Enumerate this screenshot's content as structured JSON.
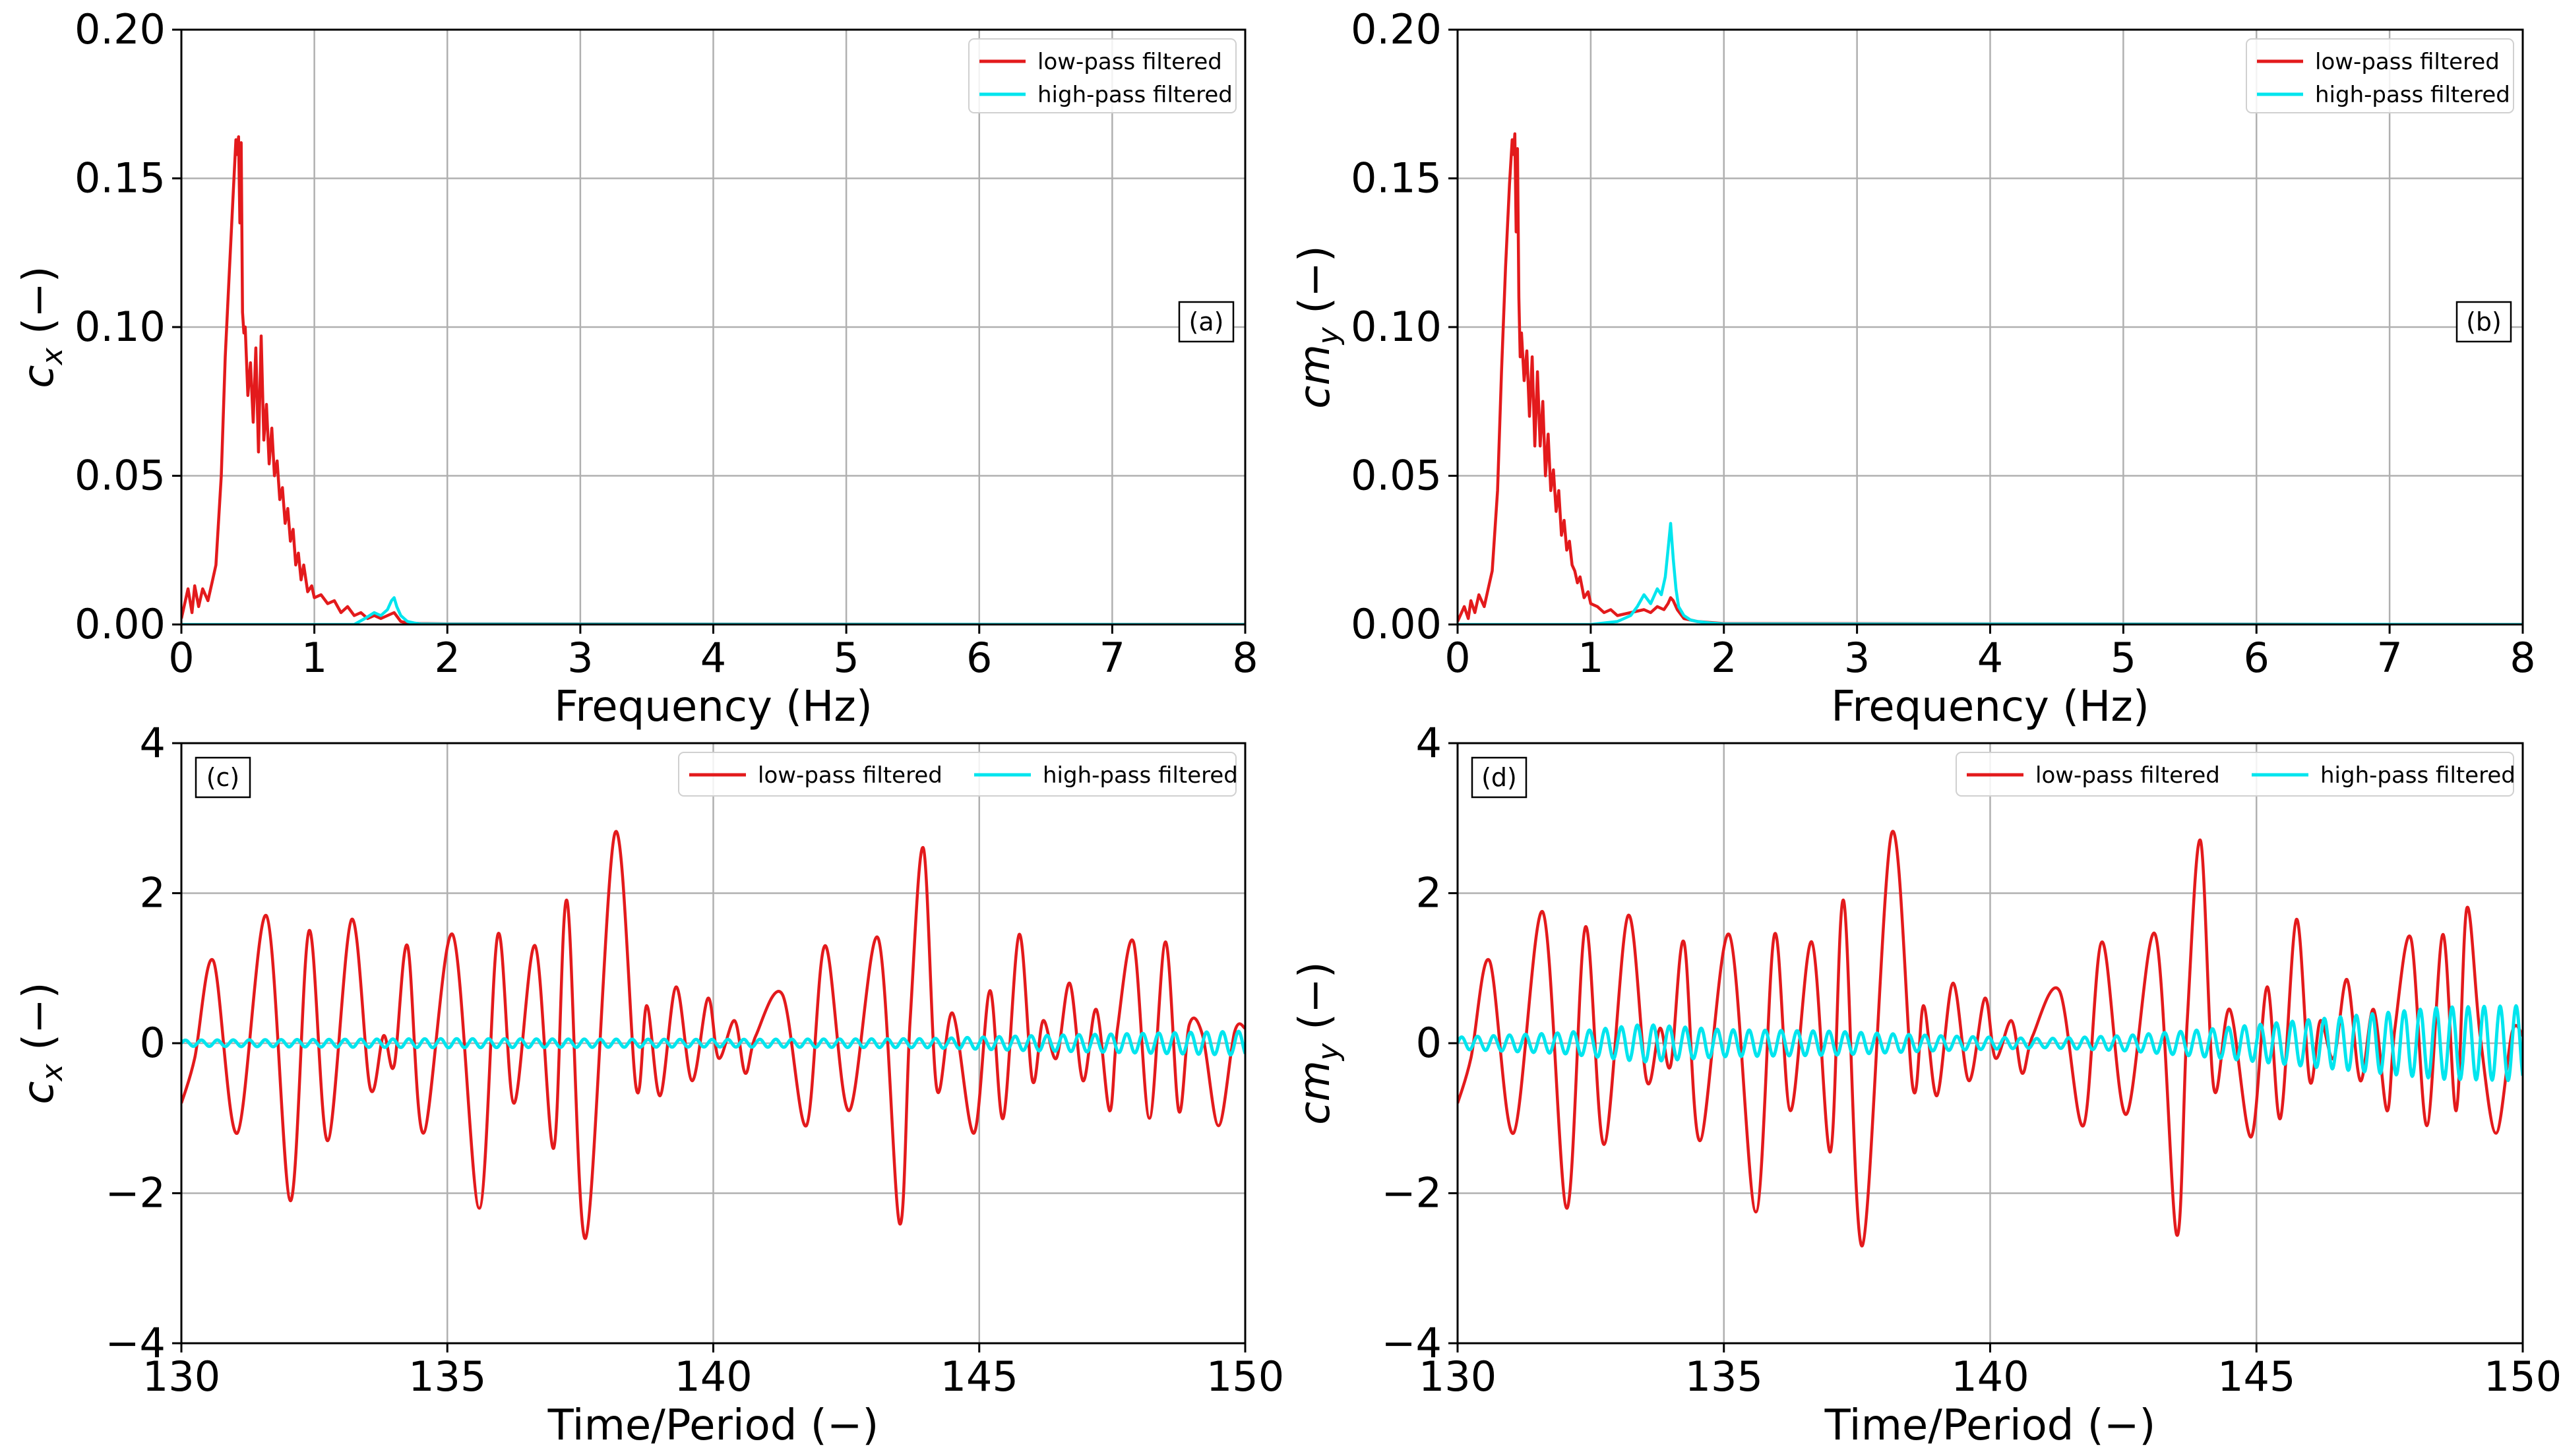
{
  "colors": {
    "low_pass": "#e31a1c",
    "high_pass": "#00e5ee",
    "grid": "#b0b0b0",
    "frame": "#000000"
  },
  "chart_data": [
    {
      "id": "a",
      "type": "line",
      "panel_label": "(a)",
      "xlabel": "Frequency (Hz)",
      "ylabel_main": "c",
      "ylabel_sub": "x",
      "ylabel_tail": " (−)",
      "xlim": [
        0,
        8
      ],
      "ylim": [
        0,
        0.2
      ],
      "xticks": [
        0,
        1,
        2,
        3,
        4,
        5,
        6,
        7,
        8
      ],
      "xtick_labels": [
        "0",
        "1",
        "2",
        "3",
        "4",
        "5",
        "6",
        "7",
        "8"
      ],
      "yticks": [
        0,
        0.05,
        0.1,
        0.15,
        0.2
      ],
      "ytick_labels": [
        "0.00",
        "0.05",
        "0.10",
        "0.15",
        "0.20"
      ],
      "grid": true,
      "legend": {
        "location": "upper-right",
        "layout": "vertical",
        "entries": [
          "low-pass filtered",
          "high-pass filtered"
        ]
      },
      "series": [
        {
          "name": "low-pass filtered",
          "color_key": "low_pass",
          "x": [
            0.0,
            0.05,
            0.08,
            0.1,
            0.13,
            0.16,
            0.2,
            0.23,
            0.26,
            0.3,
            0.33,
            0.36,
            0.39,
            0.41,
            0.42,
            0.43,
            0.44,
            0.45,
            0.46,
            0.47,
            0.48,
            0.5,
            0.52,
            0.54,
            0.56,
            0.58,
            0.6,
            0.62,
            0.64,
            0.66,
            0.68,
            0.7,
            0.72,
            0.74,
            0.76,
            0.78,
            0.8,
            0.82,
            0.84,
            0.86,
            0.88,
            0.9,
            0.92,
            0.95,
            0.98,
            1.0,
            1.05,
            1.1,
            1.15,
            1.2,
            1.25,
            1.3,
            1.35,
            1.4,
            1.45,
            1.5,
            1.55,
            1.6,
            1.65,
            1.7,
            1.8,
            2.0,
            8.0
          ],
          "y": [
            0.002,
            0.012,
            0.004,
            0.013,
            0.006,
            0.012,
            0.008,
            0.014,
            0.02,
            0.05,
            0.09,
            0.118,
            0.145,
            0.163,
            0.158,
            0.164,
            0.135,
            0.162,
            0.105,
            0.098,
            0.1,
            0.077,
            0.088,
            0.068,
            0.093,
            0.058,
            0.097,
            0.062,
            0.074,
            0.054,
            0.066,
            0.05,
            0.055,
            0.042,
            0.046,
            0.034,
            0.039,
            0.028,
            0.032,
            0.02,
            0.024,
            0.015,
            0.02,
            0.011,
            0.013,
            0.009,
            0.01,
            0.007,
            0.008,
            0.004,
            0.006,
            0.003,
            0.004,
            0.002,
            0.003,
            0.002,
            0.003,
            0.004,
            0.001,
            0.0005,
            0.0003,
            0.0002,
            0.0
          ]
        },
        {
          "name": "high-pass filtered",
          "color_key": "high_pass",
          "x": [
            0.0,
            1.3,
            1.38,
            1.45,
            1.5,
            1.55,
            1.58,
            1.6,
            1.62,
            1.65,
            1.7,
            1.75,
            1.8,
            2.0,
            8.0
          ],
          "y": [
            0.0,
            0.0,
            0.002,
            0.004,
            0.003,
            0.005,
            0.008,
            0.009,
            0.006,
            0.003,
            0.001,
            0.0005,
            0.0002,
            0.0001,
            0.0
          ]
        }
      ]
    },
    {
      "id": "b",
      "type": "line",
      "panel_label": "(b)",
      "xlabel": "Frequency (Hz)",
      "ylabel_main": "cm",
      "ylabel_sub": "y",
      "ylabel_tail": " (−)",
      "xlim": [
        0,
        8
      ],
      "ylim": [
        0,
        0.2
      ],
      "xticks": [
        0,
        1,
        2,
        3,
        4,
        5,
        6,
        7,
        8
      ],
      "xtick_labels": [
        "0",
        "1",
        "2",
        "3",
        "4",
        "5",
        "6",
        "7",
        "8"
      ],
      "yticks": [
        0,
        0.05,
        0.1,
        0.15,
        0.2
      ],
      "ytick_labels": [
        "0.00",
        "0.05",
        "0.10",
        "0.15",
        "0.20"
      ],
      "grid": true,
      "legend": {
        "location": "upper-right",
        "layout": "vertical",
        "entries": [
          "low-pass filtered",
          "high-pass filtered"
        ]
      },
      "series": [
        {
          "name": "low-pass filtered",
          "color_key": "low_pass",
          "x": [
            0.0,
            0.05,
            0.08,
            0.1,
            0.13,
            0.16,
            0.2,
            0.23,
            0.26,
            0.3,
            0.33,
            0.36,
            0.39,
            0.41,
            0.42,
            0.43,
            0.44,
            0.45,
            0.46,
            0.47,
            0.48,
            0.5,
            0.52,
            0.54,
            0.56,
            0.58,
            0.6,
            0.62,
            0.64,
            0.66,
            0.68,
            0.7,
            0.72,
            0.74,
            0.76,
            0.78,
            0.8,
            0.82,
            0.84,
            0.86,
            0.88,
            0.9,
            0.92,
            0.95,
            0.98,
            1.0,
            1.05,
            1.1,
            1.15,
            1.2,
            1.3,
            1.4,
            1.45,
            1.5,
            1.55,
            1.58,
            1.6,
            1.62,
            1.65,
            1.7,
            1.8,
            2.0,
            8.0
          ],
          "y": [
            0.001,
            0.006,
            0.002,
            0.008,
            0.004,
            0.01,
            0.006,
            0.012,
            0.018,
            0.045,
            0.085,
            0.12,
            0.148,
            0.163,
            0.158,
            0.165,
            0.132,
            0.16,
            0.11,
            0.09,
            0.098,
            0.082,
            0.092,
            0.07,
            0.09,
            0.06,
            0.085,
            0.06,
            0.075,
            0.05,
            0.064,
            0.045,
            0.052,
            0.038,
            0.045,
            0.03,
            0.035,
            0.025,
            0.028,
            0.02,
            0.018,
            0.014,
            0.016,
            0.009,
            0.011,
            0.007,
            0.006,
            0.004,
            0.005,
            0.003,
            0.004,
            0.005,
            0.004,
            0.006,
            0.005,
            0.007,
            0.009,
            0.008,
            0.005,
            0.002,
            0.001,
            0.0003,
            0.0
          ]
        },
        {
          "name": "high-pass filtered",
          "color_key": "high_pass",
          "x": [
            0.0,
            1.0,
            1.2,
            1.3,
            1.35,
            1.4,
            1.45,
            1.5,
            1.53,
            1.56,
            1.58,
            1.6,
            1.62,
            1.64,
            1.66,
            1.7,
            1.75,
            1.8,
            1.9,
            2.0,
            8.0
          ],
          "y": [
            0.0,
            0.0,
            0.001,
            0.003,
            0.006,
            0.01,
            0.007,
            0.012,
            0.01,
            0.016,
            0.025,
            0.034,
            0.022,
            0.012,
            0.006,
            0.003,
            0.0015,
            0.001,
            0.0005,
            0.0002,
            0.0
          ]
        }
      ]
    },
    {
      "id": "c",
      "type": "line",
      "panel_label": "(c)",
      "xlabel": "Time/Period (−)",
      "ylabel_main": "c",
      "ylabel_sub": "x",
      "ylabel_tail": " (−)",
      "xlim": [
        130,
        150
      ],
      "ylim": [
        -4,
        4
      ],
      "xticks": [
        130,
        135,
        140,
        145,
        150
      ],
      "xtick_labels": [
        "130",
        "135",
        "140",
        "145",
        "150"
      ],
      "yticks": [
        -4,
        -2,
        0,
        2,
        4
      ],
      "ytick_labels": [
        "−4",
        "−2",
        "0",
        "2",
        "4"
      ],
      "grid": true,
      "legend": {
        "location": "top-right",
        "layout": "horizontal",
        "entries": [
          "low-pass filtered",
          "high-pass filtered"
        ]
      },
      "series": [
        {
          "name": "low-pass filtered",
          "color_key": "low_pass",
          "x": [
            130.0,
            130.25,
            130.6,
            131.05,
            131.6,
            132.05,
            132.4,
            132.75,
            133.2,
            133.55,
            133.8,
            134.0,
            134.25,
            134.55,
            135.1,
            135.6,
            135.95,
            136.25,
            136.65,
            137.0,
            137.25,
            137.6,
            138.15,
            138.55,
            138.75,
            139.0,
            139.3,
            139.6,
            139.9,
            140.1,
            140.4,
            140.6,
            140.8,
            141.3,
            141.75,
            142.1,
            142.55,
            143.1,
            143.5,
            143.7,
            143.95,
            144.2,
            144.5,
            144.9,
            145.2,
            145.45,
            145.75,
            146.0,
            146.2,
            146.45,
            146.7,
            146.95,
            147.2,
            147.45,
            147.6,
            147.9,
            148.2,
            148.5,
            148.75,
            148.95,
            149.2,
            149.5,
            149.8,
            150.0
          ],
          "y": [
            -0.8,
            -0.2,
            1.1,
            -1.2,
            1.7,
            -2.1,
            1.5,
            -1.3,
            1.65,
            -0.6,
            0.1,
            -0.3,
            1.3,
            -1.2,
            1.45,
            -2.2,
            1.45,
            -0.8,
            1.3,
            -1.4,
            1.9,
            -2.6,
            2.8,
            -0.6,
            0.5,
            -0.7,
            0.75,
            -0.5,
            0.6,
            -0.2,
            0.3,
            -0.4,
            0.1,
            0.65,
            -1.1,
            1.3,
            -0.9,
            1.4,
            -2.4,
            0.3,
            2.6,
            -0.6,
            0.4,
            -1.2,
            0.7,
            -1.0,
            1.45,
            -0.5,
            0.3,
            -0.2,
            0.8,
            -0.5,
            0.45,
            -0.9,
            0.2,
            1.35,
            -1.0,
            1.35,
            -0.9,
            0.25,
            0.1,
            -1.1,
            0.15,
            0.2
          ]
        },
        {
          "name": "high-pass filtered",
          "color_key": "high_pass",
          "osc": {
            "t_start": 130,
            "t_end": 150,
            "period": 0.3,
            "amplitude_x": [
              130,
              135,
              140,
              144,
              146,
              148,
              150
            ],
            "amplitude_y": [
              0.04,
              0.06,
              0.05,
              0.06,
              0.1,
              0.13,
              0.16
            ]
          }
        }
      ]
    },
    {
      "id": "d",
      "type": "line",
      "panel_label": "(d)",
      "xlabel": "Time/Period (−)",
      "ylabel_main": "cm",
      "ylabel_sub": "y",
      "ylabel_tail": " (−)",
      "xlim": [
        130,
        150
      ],
      "ylim": [
        -4,
        4
      ],
      "xticks": [
        130,
        135,
        140,
        145,
        150
      ],
      "xtick_labels": [
        "130",
        "135",
        "140",
        "145",
        "150"
      ],
      "yticks": [
        -4,
        -2,
        0,
        2,
        4
      ],
      "ytick_labels": [
        "−4",
        "−2",
        "0",
        "2",
        "4"
      ],
      "grid": true,
      "legend": {
        "location": "top-right",
        "layout": "horizontal",
        "entries": [
          "low-pass filtered",
          "high-pass filtered"
        ]
      },
      "series": [
        {
          "name": "low-pass filtered",
          "color_key": "low_pass",
          "x": [
            130.0,
            130.25,
            130.6,
            131.05,
            131.6,
            132.05,
            132.4,
            132.75,
            133.2,
            133.55,
            133.8,
            134.0,
            134.25,
            134.55,
            135.1,
            135.6,
            135.95,
            136.25,
            136.65,
            137.0,
            137.25,
            137.6,
            138.15,
            138.55,
            138.75,
            139.0,
            139.3,
            139.6,
            139.9,
            140.1,
            140.4,
            140.6,
            140.8,
            141.3,
            141.75,
            142.1,
            142.55,
            143.1,
            143.5,
            143.7,
            143.95,
            144.2,
            144.5,
            144.9,
            145.2,
            145.45,
            145.75,
            146.0,
            146.2,
            146.45,
            146.7,
            146.95,
            147.2,
            147.45,
            147.6,
            147.9,
            148.2,
            148.5,
            148.75,
            148.95,
            149.2,
            149.5,
            149.8,
            150.0
          ],
          "y": [
            -0.8,
            -0.2,
            1.1,
            -1.2,
            1.75,
            -2.2,
            1.55,
            -1.35,
            1.7,
            -0.5,
            0.2,
            -0.3,
            1.35,
            -1.3,
            1.45,
            -2.25,
            1.45,
            -0.9,
            1.35,
            -1.45,
            1.9,
            -2.7,
            2.8,
            -0.6,
            0.5,
            -0.7,
            0.8,
            -0.5,
            0.6,
            -0.2,
            0.3,
            -0.4,
            0.1,
            0.7,
            -1.1,
            1.35,
            -0.95,
            1.45,
            -2.55,
            0.3,
            2.7,
            -0.6,
            0.45,
            -1.25,
            0.75,
            -1.0,
            1.65,
            -0.5,
            0.3,
            -0.2,
            0.85,
            -0.5,
            0.45,
            -0.9,
            0.2,
            1.4,
            -1.1,
            1.45,
            -0.9,
            1.8,
            0.1,
            -1.2,
            0.15,
            0.1
          ]
        },
        {
          "name": "high-pass filtered",
          "color_key": "high_pass",
          "osc": {
            "t_start": 130,
            "t_end": 150,
            "period": 0.3,
            "amplitude_x": [
              130,
              132,
              133.5,
              135,
              137,
              139,
              141,
              142.5,
              144,
              145.5,
              147,
              148.5,
              150
            ],
            "amplitude_y": [
              0.08,
              0.14,
              0.25,
              0.18,
              0.16,
              0.1,
              0.06,
              0.1,
              0.18,
              0.28,
              0.38,
              0.48,
              0.5
            ]
          }
        }
      ]
    }
  ]
}
